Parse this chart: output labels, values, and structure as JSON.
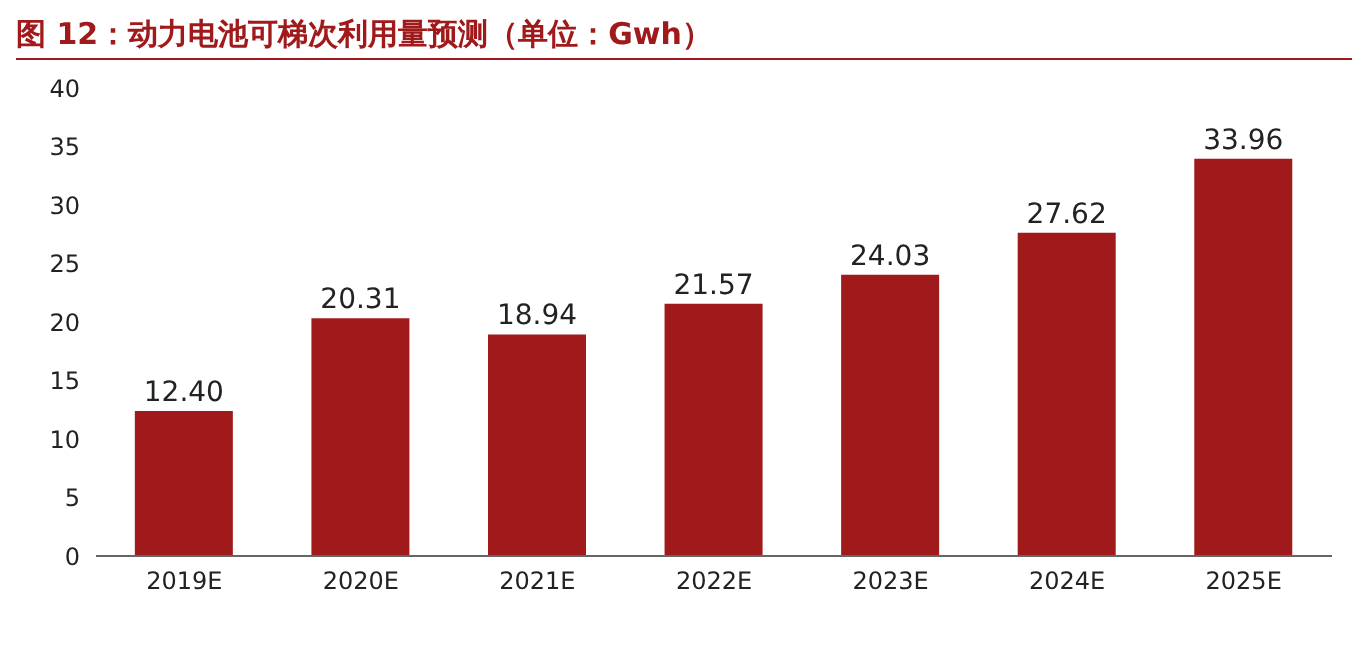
{
  "chart_data": {
    "type": "bar",
    "title": "图 12：动力电池可梯次利用量预测（单位：Gwh）",
    "categories": [
      "2019E",
      "2020E",
      "2021E",
      "2022E",
      "2023E",
      "2024E",
      "2025E"
    ],
    "values": [
      12.4,
      20.31,
      18.94,
      21.57,
      24.03,
      27.62,
      33.96
    ],
    "value_labels": [
      "12.40",
      "20.31",
      "18.94",
      "21.57",
      "24.03",
      "27.62",
      "33.96"
    ],
    "color": "#a01a1c",
    "ylim": [
      0,
      40
    ],
    "yticks": [
      0,
      5,
      10,
      15,
      20,
      25,
      30,
      35,
      40
    ],
    "grid": false
  }
}
